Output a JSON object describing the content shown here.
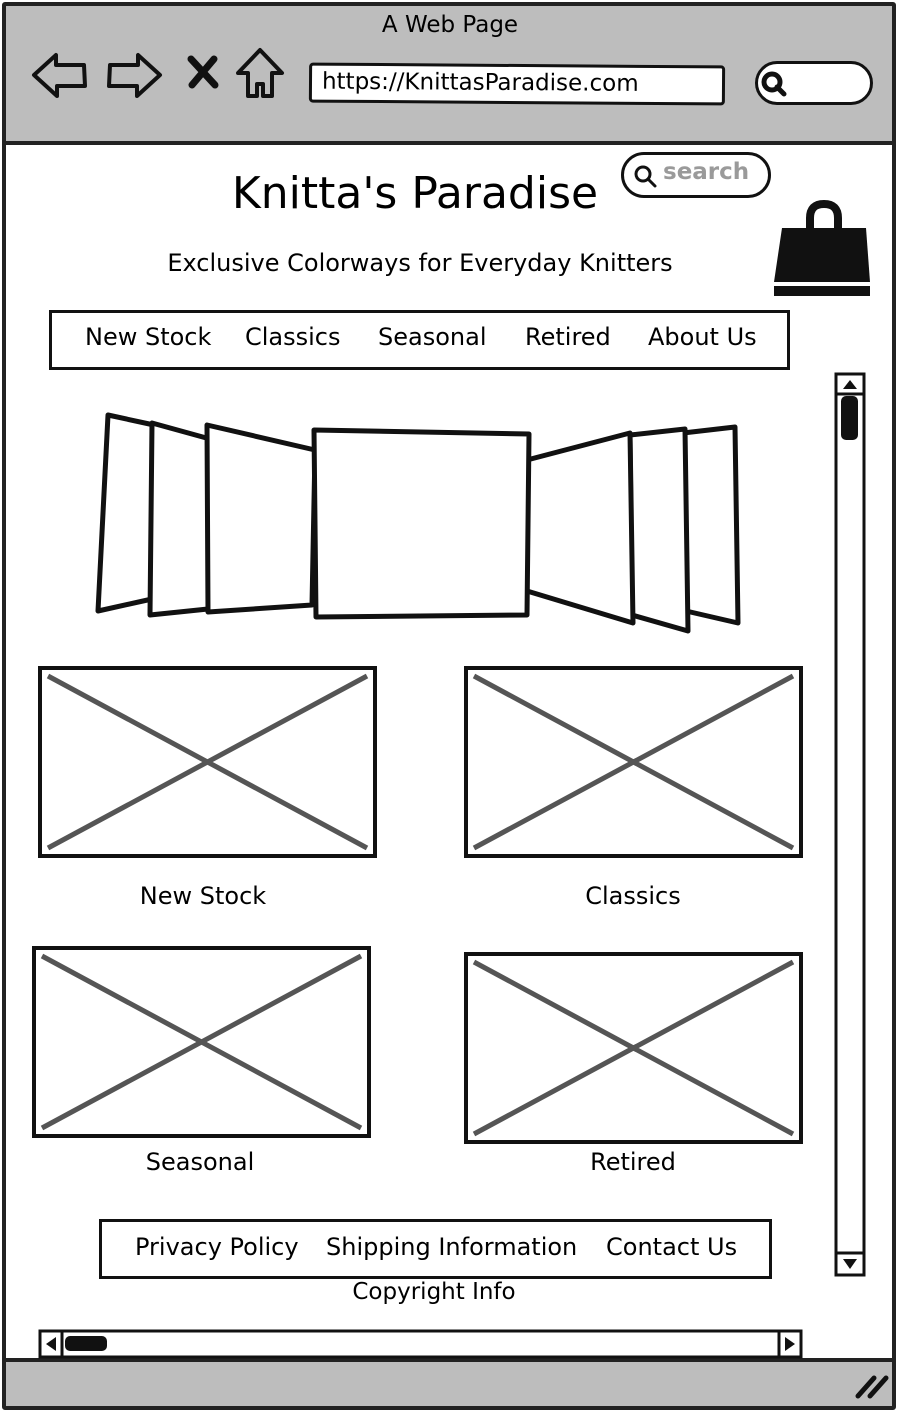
{
  "browser": {
    "window_title": "A Web Page",
    "url": "https://KnittasParadise.com",
    "icons": [
      "back-arrow-icon",
      "forward-arrow-icon",
      "close-icon",
      "home-icon",
      "search-icon"
    ]
  },
  "site": {
    "title": "Knitta's Paradise",
    "tagline": "Exclusive Colorways for Everyday Knitters",
    "search_placeholder": "search",
    "cart_icon": "shopping-bag-icon"
  },
  "nav": {
    "items": [
      "New Stock",
      "Classics",
      "Seasonal",
      "Retired",
      "About Us"
    ]
  },
  "carousel": {
    "icon": "cover-flow-carousel"
  },
  "categories": [
    {
      "label": "New Stock"
    },
    {
      "label": "Classics"
    },
    {
      "label": "Seasonal"
    },
    {
      "label": "Retired"
    }
  ],
  "footer": {
    "links": [
      "Privacy Policy",
      "Shipping Information",
      "Contact Us"
    ],
    "copyright": "Copyright Info"
  },
  "colors": {
    "chrome_gray": "#bdbdbd",
    "outline": "#111111",
    "placeholder_x": "#555555",
    "search_text": "#9a9a9a"
  }
}
